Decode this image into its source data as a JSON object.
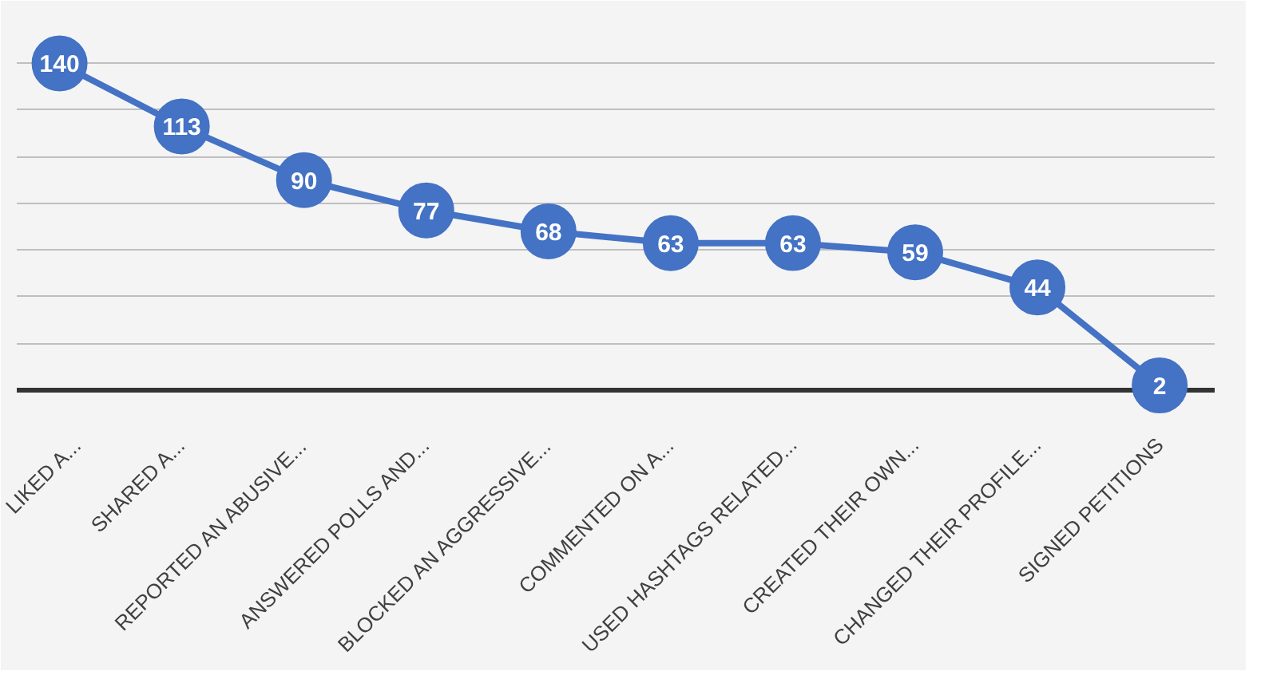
{
  "chart_data": {
    "type": "line",
    "categories": [
      "LIKED A...",
      "SHARED A...",
      "REPORTED AN ABUSIVE...",
      "ANSWERED POLLS AND...",
      "BLOCKED AN AGGRESSIVE...",
      "COMMENTED ON A...",
      "USED HASHTAGS RELATED...",
      "CREATED THEIR OWN...",
      "CHANGED THEIR PROFILE...",
      "SIGNED PETITIONS"
    ],
    "series": [
      {
        "color": "#4472c4",
        "values": [
          140,
          113,
          90,
          77,
          68,
          63,
          63,
          59,
          44,
          2
        ]
      }
    ],
    "ylim": [
      0,
      160
    ],
    "yticks": [
      {
        "value": 0,
        "label": null
      },
      {
        "value": 20,
        "label": null
      },
      {
        "value": 40,
        "label": null
      },
      {
        "value": 60,
        "label": null
      },
      {
        "value": 80,
        "label": null
      },
      {
        "value": 100,
        "label": null
      },
      {
        "value": 120,
        "label": null
      },
      {
        "value": 140,
        "label": null
      },
      {
        "value": 160,
        "label": null
      }
    ],
    "tick_labels": "x",
    "grid": "y",
    "marker": "circle",
    "line_style": "solid",
    "data_labels": true
  }
}
